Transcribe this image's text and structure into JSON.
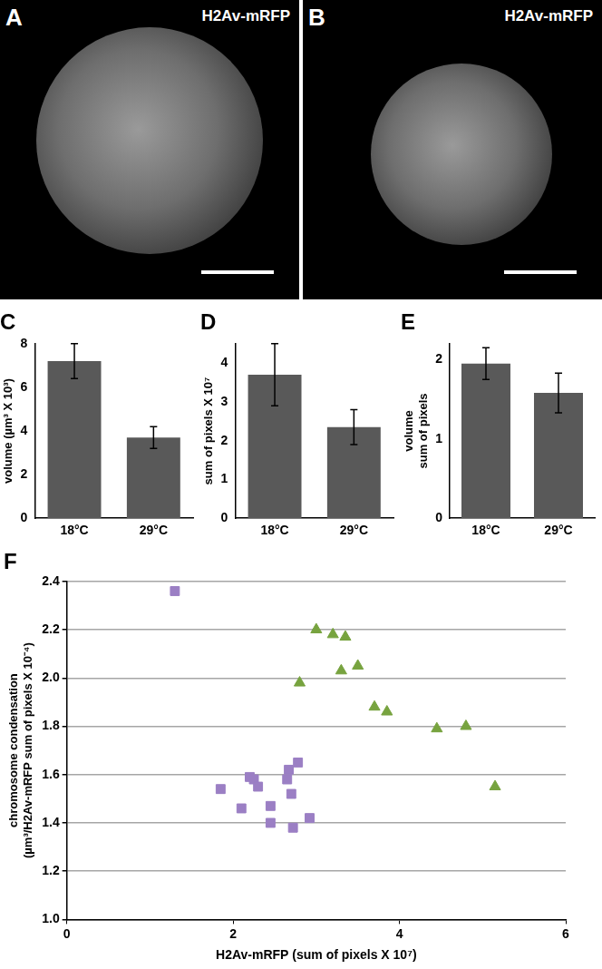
{
  "images": [
    {
      "panel": "A",
      "label": "H2Av-mRFP"
    },
    {
      "panel": "B",
      "label": "H2Av-mRFP"
    }
  ],
  "chart_data": [
    {
      "type": "bar",
      "title": "C",
      "categories": [
        "18°C",
        "29°C"
      ],
      "values": [
        7.2,
        3.7
      ],
      "errors": [
        0.8,
        0.5
      ],
      "color": "#595959",
      "ylabel": "volume (µm³ X 10³)",
      "ylim": [
        0,
        8
      ],
      "yticks": [
        0,
        2,
        4,
        6,
        8
      ],
      "grid": false
    },
    {
      "type": "bar",
      "title": "D",
      "categories": [
        "18°C",
        "29°C"
      ],
      "values": [
        3.7,
        2.35
      ],
      "errors": [
        0.8,
        0.45
      ],
      "color": "#595959",
      "ylabel": "sum of pixels X 10⁷",
      "ylim": [
        0,
        4.5
      ],
      "yticks": [
        0,
        1,
        2,
        3,
        4
      ],
      "grid": false
    },
    {
      "type": "bar",
      "title": "E",
      "categories": [
        "18°C",
        "29°C"
      ],
      "values": [
        1.95,
        1.58
      ],
      "errors": [
        0.2,
        0.25
      ],
      "color": "#595959",
      "ylabel": [
        "volume",
        "sum of pixels"
      ],
      "ylim": [
        0,
        2.2
      ],
      "yticks": [
        0,
        1,
        2
      ],
      "grid": false
    },
    {
      "type": "scatter",
      "title": "F",
      "xlabel": "H2Av-mRFP (sum of pixels X 10⁷)",
      "ylabel": [
        "chromosome condensation",
        "(µm³/H2Av-mRFP sum of pixels X 10⁻⁴)"
      ],
      "xlim": [
        0,
        6
      ],
      "xticks": [
        0,
        2,
        4,
        6
      ],
      "ylim": [
        1,
        2.4
      ],
      "yticks": [
        {
          "value": 1,
          "label": "1.0"
        },
        1.2,
        1.4,
        1.6,
        1.8,
        {
          "value": 2,
          "label": "2.0"
        },
        2.2,
        2.4
      ],
      "grid": true,
      "series": [
        {
          "color": "#9b7fc4",
          "marker": "square",
          "x": [
            1.3,
            1.85,
            2.1,
            2.2,
            2.25,
            2.3,
            2.45,
            2.45,
            2.65,
            2.67,
            2.7,
            2.72,
            2.78,
            2.92
          ],
          "values": [
            2.36,
            1.54,
            1.46,
            1.59,
            1.58,
            1.55,
            1.47,
            1.4,
            1.58,
            1.62,
            1.52,
            1.38,
            1.65,
            1.42
          ]
        },
        {
          "color": "#77a33f",
          "marker": "triangle",
          "x": [
            2.8,
            3.0,
            3.2,
            3.35,
            3.3,
            3.5,
            3.7,
            3.85,
            4.45,
            4.8,
            5.15
          ],
          "values": [
            1.98,
            2.2,
            2.18,
            2.17,
            2.03,
            2.05,
            1.88,
            1.86,
            1.79,
            1.8,
            1.55
          ]
        }
      ]
    }
  ]
}
